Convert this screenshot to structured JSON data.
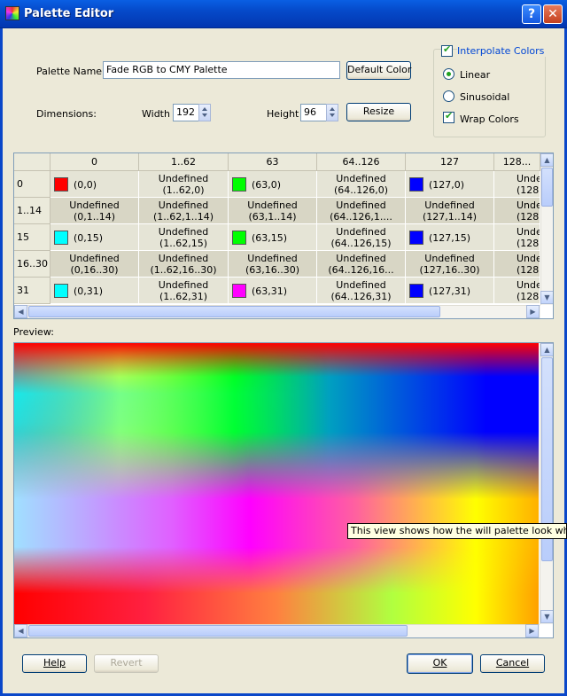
{
  "window": {
    "title": "Palette Editor",
    "help_glyph": "?",
    "close_glyph": "✕"
  },
  "form": {
    "palette_name_label": "Palette Name:",
    "palette_name_value": "Fade RGB to CMY Palette",
    "default_color_button": "Default Color",
    "dimensions_label": "Dimensions:",
    "width_label": "Width",
    "width_value": "192",
    "height_label": "Height",
    "height_value": "96",
    "resize_button": "Resize"
  },
  "options": {
    "interpolate_label": "Interpolate Colors",
    "interpolate_checked": true,
    "linear_label": "Linear",
    "linear_selected": true,
    "sinusoidal_label": "Sinusoidal",
    "sinusoidal_selected": false,
    "wrap_label": "Wrap Colors",
    "wrap_checked": true
  },
  "table": {
    "columns": [
      "0",
      "1..62",
      "63",
      "64..126",
      "127",
      "128..."
    ],
    "rows": [
      {
        "header": "0",
        "cells": [
          {
            "swatch": "#ff0000",
            "l1": "(0,0)"
          },
          {
            "l1": "Undefined",
            "l2": "(1..62,0)"
          },
          {
            "swatch": "#00ff00",
            "l1": "(63,0)"
          },
          {
            "l1": "Undefined",
            "l2": "(64..126,0)"
          },
          {
            "swatch": "#0000ff",
            "l1": "(127,0)"
          },
          {
            "l1": "Unde",
            "l2": "(128."
          }
        ]
      },
      {
        "header": "1..14",
        "cells": [
          {
            "l1": "Undefined",
            "l2": "(0,1..14)"
          },
          {
            "l1": "Undefined",
            "l2": "(1..62,1..14)"
          },
          {
            "l1": "Undefined",
            "l2": "(63,1..14)"
          },
          {
            "l1": "Undefined",
            "l2": "(64..126,1...."
          },
          {
            "l1": "Undefined",
            "l2": "(127,1..14)"
          },
          {
            "l1": "Unde",
            "l2": "(128."
          }
        ]
      },
      {
        "header": "15",
        "cells": [
          {
            "swatch": "#00ffff",
            "l1": "(0,15)"
          },
          {
            "l1": "Undefined",
            "l2": "(1..62,15)"
          },
          {
            "swatch": "#00ff00",
            "l1": "(63,15)"
          },
          {
            "l1": "Undefined",
            "l2": "(64..126,15)"
          },
          {
            "swatch": "#0000ff",
            "l1": "(127,15)"
          },
          {
            "l1": "Unde",
            "l2": "(128."
          }
        ]
      },
      {
        "header": "16..30",
        "cells": [
          {
            "l1": "Undefined",
            "l2": "(0,16..30)"
          },
          {
            "l1": "Undefined",
            "l2": "(1..62,16..30)"
          },
          {
            "l1": "Undefined",
            "l2": "(63,16..30)"
          },
          {
            "l1": "Undefined",
            "l2": "(64..126,16..."
          },
          {
            "l1": "Undefined",
            "l2": "(127,16..30)"
          },
          {
            "l1": "Unde",
            "l2": "(128."
          }
        ]
      },
      {
        "header": "31",
        "cells": [
          {
            "swatch": "#00ffff",
            "l1": "(0,31)"
          },
          {
            "l1": "Undefined",
            "l2": "(1..62,31)"
          },
          {
            "swatch": "#ff00ff",
            "l1": "(63,31)"
          },
          {
            "l1": "Undefined",
            "l2": "(64..126,31)"
          },
          {
            "swatch": "#0000ff",
            "l1": "(127,31)"
          },
          {
            "l1": "Unde",
            "l2": "(128."
          }
        ]
      }
    ]
  },
  "preview": {
    "label": "Preview:",
    "tooltip": "This view shows how the will palette look when in use"
  },
  "buttons": {
    "help": "Help",
    "revert": "Revert",
    "ok": "OK",
    "cancel": "Cancel"
  },
  "colors": {
    "titlebar": "#0549c9",
    "dialog_bg": "#ece9d8",
    "accent": "#21a121"
  }
}
